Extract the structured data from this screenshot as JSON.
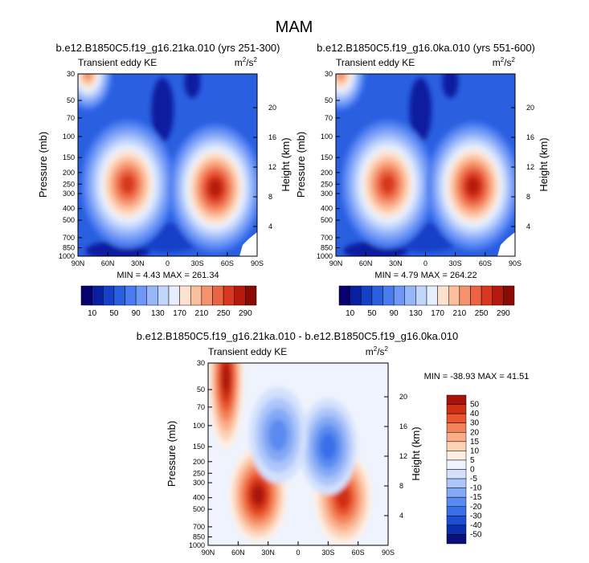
{
  "figure": {
    "title": "MAM"
  },
  "panels": [
    {
      "title": "b.e12.B1850C5.f19_g16.21ka.010 (yrs 251-300)",
      "left_label": "Transient eddy KE",
      "right_label_base": "m",
      "right_label_sup1": "2",
      "right_label_mid": "/s",
      "right_label_sup2": "2",
      "stats": "MIN =  4.43  MAX = 261.34"
    },
    {
      "title": "b.e12.B1850C5.f19_g16.0ka.010 (yrs 551-600)",
      "left_label": "Transient eddy KE",
      "right_label_base": "m",
      "right_label_sup1": "2",
      "right_label_mid": "/s",
      "right_label_sup2": "2",
      "stats": "MIN =  4.79  MAX = 264.22"
    },
    {
      "title": "b.e12.B1850C5.f19_g16.21ka.010 - b.e12.B1850C5.f19_g16.0ka.010",
      "left_label": "Transient eddy KE",
      "right_label_base": "m",
      "right_label_sup1": "2",
      "right_label_mid": "/s",
      "right_label_sup2": "2",
      "stats": "MIN = -38.93  MAX = 41.51"
    }
  ],
  "colors": {
    "abs_scale": [
      "#08006e",
      "#0a1fa0",
      "#1540c8",
      "#2a5fe0",
      "#4a7bf0",
      "#6f98f6",
      "#97b6fa",
      "#c2d6fc",
      "#e6eefe",
      "#fde3cf",
      "#fbbf9e",
      "#f5936c",
      "#ec6444",
      "#d8381f",
      "#b51a0e",
      "#8a0a06"
    ],
    "diff_scale": [
      "#0a0f7a",
      "#0b2fa8",
      "#1a4fd4",
      "#3a6ee8",
      "#5a8bf0",
      "#84a9f5",
      "#adc6f9",
      "#d3e1fc",
      "#eef3fe",
      "#fdeee4",
      "#fcd1b6",
      "#f9ad88",
      "#f2835a",
      "#e8552f",
      "#cf2f14",
      "#a81208"
    ]
  },
  "chart_data": [
    {
      "type": "heatmap",
      "title": "b.e12.B1850C5.f19_g16.21ka.010 (yrs 251-300)",
      "xlabel": "",
      "ylabel": "Pressure (mb)",
      "ylabel_right": "Height (km)",
      "x_ticks": [
        "90N",
        "60N",
        "30N",
        "0",
        "30S",
        "60S",
        "90S"
      ],
      "y_ticks": [
        "30",
        "50",
        "70",
        "100",
        "150",
        "200",
        "250",
        "300",
        "400",
        "500",
        "700",
        "850",
        "1000"
      ],
      "y_right_ticks": [
        "4",
        "8",
        "12",
        "16",
        "20"
      ],
      "colorbar_labels": [
        "10",
        "50",
        "90",
        "130",
        "170",
        "210",
        "250",
        "290"
      ],
      "min": 4.43,
      "max": 261.34,
      "features": [
        {
          "lat": 40,
          "pressure": 250,
          "value": 250
        },
        {
          "lat": -48,
          "pressure": 270,
          "value": 261
        },
        {
          "lat": 80,
          "pressure": 30,
          "value": 200
        }
      ]
    },
    {
      "type": "heatmap",
      "title": "b.e12.B1850C5.f19_g16.0ka.010 (yrs 551-600)",
      "xlabel": "",
      "ylabel": "Pressure (mb)",
      "ylabel_right": "Height (km)",
      "x_ticks": [
        "90N",
        "60N",
        "30N",
        "0",
        "30S",
        "60S",
        "90S"
      ],
      "y_ticks": [
        "30",
        "50",
        "70",
        "100",
        "150",
        "200",
        "250",
        "300",
        "400",
        "500",
        "700",
        "850",
        "1000"
      ],
      "y_right_ticks": [
        "4",
        "8",
        "12",
        "16",
        "20"
      ],
      "colorbar_labels": [
        "10",
        "50",
        "90",
        "130",
        "170",
        "210",
        "250",
        "290"
      ],
      "min": 4.79,
      "max": 264.22,
      "features": [
        {
          "lat": 38,
          "pressure": 250,
          "value": 240
        },
        {
          "lat": -48,
          "pressure": 260,
          "value": 264
        },
        {
          "lat": 85,
          "pressure": 30,
          "value": 210
        }
      ]
    },
    {
      "type": "heatmap",
      "title": "b.e12.B1850C5.f19_g16.21ka.010 - b.e12.B1850C5.f19_g16.0ka.010",
      "xlabel": "",
      "ylabel": "Pressure (mb)",
      "ylabel_right": "Height (km)",
      "x_ticks": [
        "90N",
        "60N",
        "30N",
        "0",
        "30S",
        "60S",
        "90S"
      ],
      "y_ticks": [
        "30",
        "50",
        "70",
        "100",
        "150",
        "200",
        "250",
        "300",
        "400",
        "500",
        "700",
        "850",
        "1000"
      ],
      "y_right_ticks": [
        "4",
        "8",
        "12",
        "16",
        "20"
      ],
      "colorbar_labels": [
        "50",
        "40",
        "30",
        "20",
        "15",
        "10",
        "5",
        "0",
        "-5",
        "-10",
        "-15",
        "-20",
        "-30",
        "-40",
        "-50"
      ],
      "min": -38.93,
      "max": 41.51,
      "features": [
        {
          "lat": 72,
          "pressure": 40,
          "value": 40
        },
        {
          "lat": 40,
          "pressure": 380,
          "value": 41
        },
        {
          "lat": -45,
          "pressure": 400,
          "value": 35
        },
        {
          "lat": -30,
          "pressure": 150,
          "value": -30
        },
        {
          "lat": 20,
          "pressure": 120,
          "value": -25
        }
      ]
    }
  ]
}
